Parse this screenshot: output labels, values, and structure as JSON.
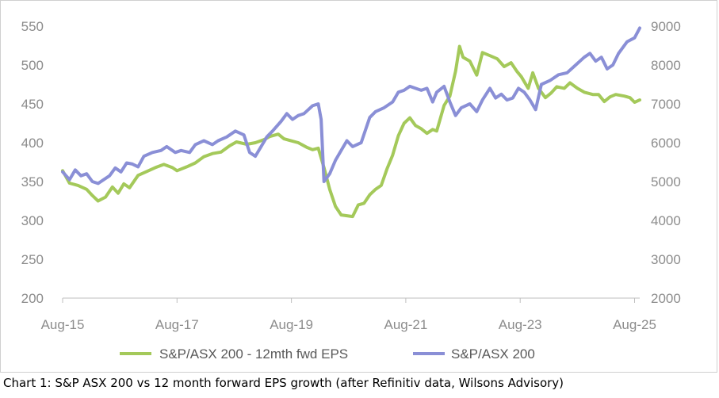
{
  "caption": "Chart 1: S&P ASX 200 vs 12 month forward EPS growth (after Refinitiv data, Wilsons Advisory)",
  "colors": {
    "eps": "#a4c95a",
    "index": "#8a8fd6",
    "axis": "#bfbfbf",
    "text": "#8c8c8c"
  },
  "chart_data": {
    "type": "line",
    "title": "",
    "xlabel": "",
    "ylabel": "",
    "x_range": [
      2015.58,
      2025.67
    ],
    "x_ticks": [
      {
        "label": "Aug-15",
        "x": 2015.58
      },
      {
        "label": "Aug-17",
        "x": 2017.58
      },
      {
        "label": "Aug-19",
        "x": 2019.58
      },
      {
        "label": "Aug-21",
        "x": 2021.58
      },
      {
        "label": "Aug-23",
        "x": 2023.58
      },
      {
        "label": "Aug-25",
        "x": 2025.58
      }
    ],
    "y_left": {
      "range": [
        200,
        550
      ],
      "ticks": [
        "200",
        "250",
        "300",
        "350",
        "400",
        "450",
        "500",
        "550"
      ]
    },
    "y_right": {
      "range": [
        2000,
        9000
      ],
      "ticks": [
        "2000",
        "3000",
        "4000",
        "5000",
        "6000",
        "7000",
        "8000",
        "9000"
      ]
    },
    "legend": [
      {
        "label": "S&P/ASX 200 - 12mth fwd EPS",
        "series": "eps"
      },
      {
        "label": "S&P/ASX 200",
        "series": "index"
      }
    ],
    "series": [
      {
        "name": "S&P/ASX 200 - 12mth fwd EPS",
        "key": "eps",
        "axis": "left",
        "points": [
          [
            2015.58,
            364
          ],
          [
            2015.7,
            348
          ],
          [
            2015.85,
            345
          ],
          [
            2016.0,
            340
          ],
          [
            2016.1,
            332
          ],
          [
            2016.2,
            325
          ],
          [
            2016.33,
            330
          ],
          [
            2016.45,
            343
          ],
          [
            2016.55,
            335
          ],
          [
            2016.65,
            347
          ],
          [
            2016.75,
            342
          ],
          [
            2016.9,
            358
          ],
          [
            2017.05,
            363
          ],
          [
            2017.2,
            368
          ],
          [
            2017.35,
            372
          ],
          [
            2017.5,
            368
          ],
          [
            2017.58,
            364
          ],
          [
            2017.75,
            369
          ],
          [
            2017.9,
            374
          ],
          [
            2018.05,
            382
          ],
          [
            2018.2,
            386
          ],
          [
            2018.35,
            388
          ],
          [
            2018.5,
            396
          ],
          [
            2018.62,
            401
          ],
          [
            2018.8,
            398
          ],
          [
            2018.95,
            400
          ],
          [
            2019.1,
            404
          ],
          [
            2019.2,
            408
          ],
          [
            2019.35,
            411
          ],
          [
            2019.45,
            405
          ],
          [
            2019.55,
            403
          ],
          [
            2019.7,
            400
          ],
          [
            2019.85,
            394
          ],
          [
            2019.95,
            391
          ],
          [
            2020.05,
            393
          ],
          [
            2020.15,
            368
          ],
          [
            2020.25,
            340
          ],
          [
            2020.35,
            318
          ],
          [
            2020.45,
            307
          ],
          [
            2020.55,
            306
          ],
          [
            2020.65,
            305
          ],
          [
            2020.75,
            320
          ],
          [
            2020.85,
            322
          ],
          [
            2020.95,
            333
          ],
          [
            2021.05,
            340
          ],
          [
            2021.15,
            345
          ],
          [
            2021.25,
            366
          ],
          [
            2021.35,
            384
          ],
          [
            2021.45,
            409
          ],
          [
            2021.55,
            425
          ],
          [
            2021.65,
            432
          ],
          [
            2021.75,
            422
          ],
          [
            2021.85,
            418
          ],
          [
            2021.95,
            412
          ],
          [
            2022.05,
            417
          ],
          [
            2022.12,
            415
          ],
          [
            2022.25,
            448
          ],
          [
            2022.35,
            460
          ],
          [
            2022.45,
            492
          ],
          [
            2022.52,
            524
          ],
          [
            2022.58,
            510
          ],
          [
            2022.7,
            505
          ],
          [
            2022.82,
            487
          ],
          [
            2022.92,
            516
          ],
          [
            2023.05,
            512
          ],
          [
            2023.18,
            508
          ],
          [
            2023.3,
            498
          ],
          [
            2023.42,
            503
          ],
          [
            2023.52,
            492
          ],
          [
            2023.6,
            485
          ],
          [
            2023.72,
            470
          ],
          [
            2023.8,
            490
          ],
          [
            2023.9,
            470
          ],
          [
            2024.02,
            458
          ],
          [
            2024.12,
            464
          ],
          [
            2024.22,
            472
          ],
          [
            2024.35,
            470
          ],
          [
            2024.45,
            477
          ],
          [
            2024.58,
            470
          ],
          [
            2024.7,
            465
          ],
          [
            2024.85,
            462
          ],
          [
            2024.95,
            462
          ],
          [
            2025.05,
            453
          ],
          [
            2025.15,
            459
          ],
          [
            2025.25,
            462
          ],
          [
            2025.4,
            460
          ],
          [
            2025.5,
            458
          ],
          [
            2025.58,
            452
          ],
          [
            2025.67,
            455
          ]
        ]
      },
      {
        "name": "S&P/ASX 200",
        "key": "index",
        "axis": "right",
        "points": [
          [
            2015.58,
            5250
          ],
          [
            2015.7,
            5050
          ],
          [
            2015.8,
            5300
          ],
          [
            2015.9,
            5150
          ],
          [
            2016.0,
            5200
          ],
          [
            2016.1,
            5000
          ],
          [
            2016.2,
            4950
          ],
          [
            2016.3,
            5050
          ],
          [
            2016.4,
            5150
          ],
          [
            2016.5,
            5350
          ],
          [
            2016.6,
            5250
          ],
          [
            2016.7,
            5480
          ],
          [
            2016.8,
            5450
          ],
          [
            2016.9,
            5380
          ],
          [
            2017.0,
            5650
          ],
          [
            2017.15,
            5750
          ],
          [
            2017.3,
            5800
          ],
          [
            2017.4,
            5900
          ],
          [
            2017.55,
            5750
          ],
          [
            2017.65,
            5800
          ],
          [
            2017.8,
            5750
          ],
          [
            2017.9,
            5950
          ],
          [
            2018.05,
            6050
          ],
          [
            2018.2,
            5950
          ],
          [
            2018.3,
            6050
          ],
          [
            2018.45,
            6150
          ],
          [
            2018.6,
            6300
          ],
          [
            2018.75,
            6200
          ],
          [
            2018.85,
            5750
          ],
          [
            2018.95,
            5650
          ],
          [
            2019.05,
            5900
          ],
          [
            2019.15,
            6150
          ],
          [
            2019.25,
            6300
          ],
          [
            2019.4,
            6550
          ],
          [
            2019.5,
            6750
          ],
          [
            2019.6,
            6600
          ],
          [
            2019.7,
            6700
          ],
          [
            2019.8,
            6750
          ],
          [
            2019.95,
            6950
          ],
          [
            2020.05,
            7000
          ],
          [
            2020.1,
            6600
          ],
          [
            2020.15,
            5000
          ],
          [
            2020.25,
            5200
          ],
          [
            2020.35,
            5550
          ],
          [
            2020.45,
            5800
          ],
          [
            2020.55,
            6050
          ],
          [
            2020.65,
            5900
          ],
          [
            2020.8,
            6000
          ],
          [
            2020.95,
            6650
          ],
          [
            2021.05,
            6800
          ],
          [
            2021.2,
            6900
          ],
          [
            2021.35,
            7050
          ],
          [
            2021.45,
            7300
          ],
          [
            2021.55,
            7350
          ],
          [
            2021.65,
            7450
          ],
          [
            2021.75,
            7400
          ],
          [
            2021.85,
            7350
          ],
          [
            2021.95,
            7400
          ],
          [
            2022.05,
            7050
          ],
          [
            2022.12,
            7300
          ],
          [
            2022.25,
            7450
          ],
          [
            2022.35,
            7050
          ],
          [
            2022.45,
            6700
          ],
          [
            2022.55,
            6900
          ],
          [
            2022.7,
            7000
          ],
          [
            2022.82,
            6800
          ],
          [
            2022.92,
            7100
          ],
          [
            2023.05,
            7400
          ],
          [
            2023.15,
            7150
          ],
          [
            2023.25,
            7250
          ],
          [
            2023.35,
            7100
          ],
          [
            2023.45,
            7150
          ],
          [
            2023.55,
            7400
          ],
          [
            2023.65,
            7300
          ],
          [
            2023.75,
            7100
          ],
          [
            2023.85,
            6850
          ],
          [
            2023.95,
            7500
          ],
          [
            2024.1,
            7600
          ],
          [
            2024.25,
            7750
          ],
          [
            2024.4,
            7800
          ],
          [
            2024.55,
            8000
          ],
          [
            2024.7,
            8200
          ],
          [
            2024.8,
            8300
          ],
          [
            2024.9,
            8100
          ],
          [
            2025.0,
            8200
          ],
          [
            2025.1,
            7900
          ],
          [
            2025.2,
            8000
          ],
          [
            2025.3,
            8300
          ],
          [
            2025.45,
            8600
          ],
          [
            2025.58,
            8700
          ],
          [
            2025.67,
            8950
          ]
        ]
      }
    ]
  }
}
